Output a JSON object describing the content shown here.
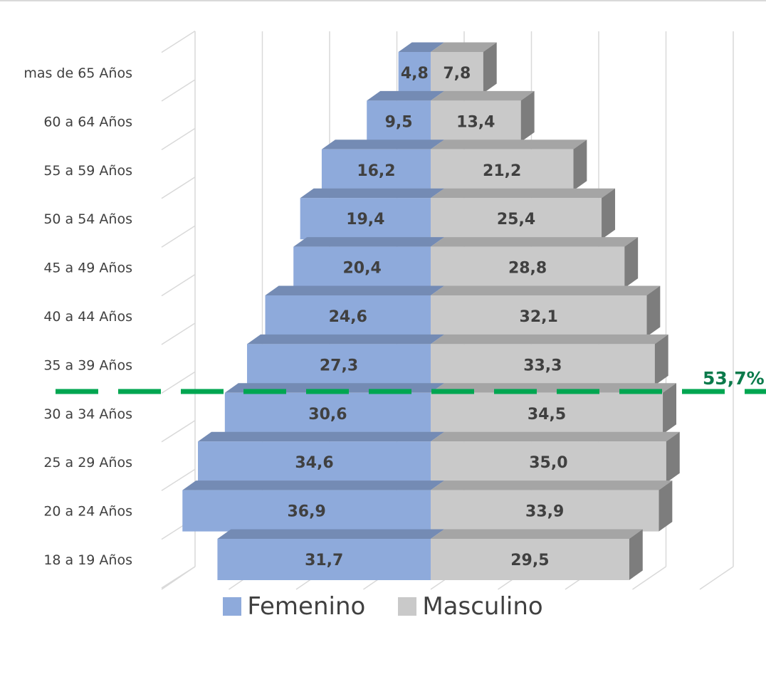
{
  "chart_data": {
    "type": "bar",
    "orientation": "horizontal-population-pyramid",
    "categories": [
      "18 a 19 Años",
      "20 a 24 Años",
      "25 a 29 Años",
      "30 a 34 Años",
      "35 a 39 Años",
      "40 a 44 Años",
      "45 a 49 Años",
      "50 a 54 Años",
      "55 a 59 Años",
      "60 a 64 Años",
      "mas de 65 Años"
    ],
    "series": [
      {
        "name": "Femenino",
        "color": "#8eaadb",
        "side": "left",
        "values": [
          31.7,
          36.9,
          34.6,
          30.6,
          27.3,
          24.6,
          20.4,
          19.4,
          16.2,
          9.5,
          4.8
        ],
        "labels": [
          "31,7",
          "36,9",
          "34,6",
          "30,6",
          "27,3",
          "24,6",
          "20,4",
          "19,4",
          "16,2",
          "9,5",
          "4,8"
        ]
      },
      {
        "name": "Masculino",
        "color": "#c9c9c9",
        "side": "right",
        "values": [
          29.5,
          33.9,
          35.0,
          34.5,
          33.3,
          32.1,
          28.8,
          25.4,
          21.2,
          13.4,
          7.8
        ],
        "labels": [
          "29,5",
          "33,9",
          "35,0",
          "34,5",
          "33,3",
          "32,1",
          "28,8",
          "25,4",
          "21,2",
          "13,4",
          "7,8"
        ]
      }
    ],
    "x_ticks": [
      "40,0",
      "30,0",
      "20,0",
      "10,0",
      "0,0",
      "10,0",
      "20,0",
      "30,0",
      "40,0"
    ],
    "xlim": [
      -40,
      40
    ],
    "grid": true,
    "legend_position": "bottom",
    "annotation": {
      "text": "53,7%",
      "style": "dashed-line",
      "color": "#00a651",
      "between": [
        "30 a 34 Años",
        "35 a 39 Años"
      ]
    }
  }
}
